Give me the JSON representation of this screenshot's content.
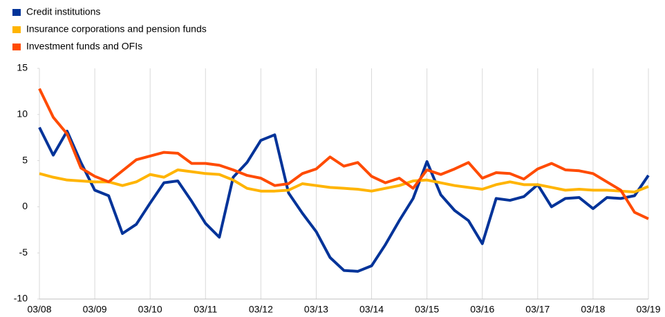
{
  "chart_data": {
    "type": "line",
    "categories": [
      "03/08",
      null,
      null,
      null,
      "03/09",
      null,
      null,
      null,
      "03/10",
      null,
      null,
      null,
      "03/11",
      null,
      null,
      null,
      "03/12",
      null,
      null,
      null,
      "03/13",
      null,
      null,
      null,
      "03/14",
      null,
      null,
      null,
      "03/15",
      null,
      null,
      null,
      "03/16",
      null,
      null,
      null,
      "03/17",
      null,
      null,
      null,
      "03/18",
      null,
      null,
      null,
      "03/19"
    ],
    "series": [
      {
        "name": "Credit institutions",
        "color": "#003399",
        "values": [
          8.6,
          5.6,
          8.2,
          4.8,
          1.8,
          1.2,
          -2.9,
          -1.9,
          0.4,
          2.6,
          2.8,
          0.6,
          -1.8,
          -3.3,
          3.2,
          4.8,
          7.2,
          7.8,
          1.5,
          -0.7,
          -2.7,
          -5.5,
          -6.9,
          -7.0,
          -6.4,
          -4.1,
          -1.5,
          0.9,
          4.9,
          1.3,
          -0.4,
          -1.5,
          -4.0,
          0.9,
          0.7,
          1.1,
          2.4,
          0.0,
          0.9,
          1.0,
          -0.2,
          1.0,
          0.9,
          1.2,
          3.4
        ]
      },
      {
        "name": "Insurance corporations and pension funds",
        "color": "#ffb400",
        "values": [
          3.6,
          3.2,
          2.9,
          2.8,
          2.7,
          2.7,
          2.3,
          2.7,
          3.5,
          3.2,
          4.0,
          3.8,
          3.6,
          3.5,
          2.9,
          2.0,
          1.7,
          1.7,
          1.8,
          2.5,
          2.3,
          2.1,
          2.0,
          1.9,
          1.7,
          2.0,
          2.3,
          2.8,
          2.9,
          2.6,
          2.3,
          2.1,
          1.9,
          2.4,
          2.7,
          2.4,
          2.4,
          2.1,
          1.8,
          1.9,
          1.8,
          1.8,
          1.7,
          1.6,
          2.2
        ]
      },
      {
        "name": "Investment funds and OFIs",
        "color": "#ff4b00",
        "values": [
          12.8,
          9.7,
          7.9,
          4.2,
          3.3,
          2.7,
          3.9,
          5.1,
          5.5,
          5.9,
          5.8,
          4.7,
          4.7,
          4.5,
          4.0,
          3.4,
          3.1,
          2.3,
          2.5,
          3.6,
          4.1,
          5.4,
          4.4,
          4.8,
          3.3,
          2.6,
          3.1,
          2.0,
          4.0,
          3.5,
          4.1,
          4.8,
          3.1,
          3.7,
          3.6,
          3.0,
          4.1,
          4.7,
          4.0,
          3.9,
          3.6,
          2.7,
          1.8,
          -0.6,
          -1.3
        ]
      }
    ],
    "ylim": [
      -10,
      15
    ],
    "yticks": [
      -10,
      -5,
      0,
      5,
      10,
      15
    ],
    "grid": true
  }
}
